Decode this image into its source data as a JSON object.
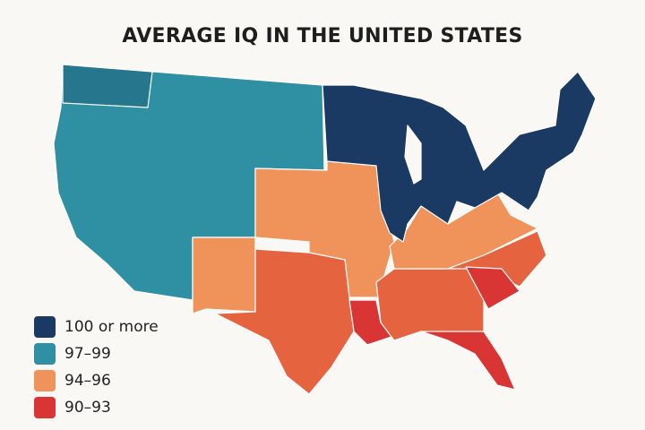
{
  "title": "AVERAGE IQ IN THE UNITED STATES",
  "colors": {
    "navy": "#1b3a63",
    "teal": "#2f8fa3",
    "teal_dark": "#26778d",
    "orange": "#f0935a",
    "red_orange": "#e6633f",
    "red": "#d93535",
    "background": "#faf8f4"
  },
  "legend": [
    {
      "label": "100 or more",
      "color": "#1b3a63"
    },
    {
      "label": "97–99",
      "color": "#2f8fa3"
    },
    {
      "label": "94–96",
      "color": "#f0935a"
    },
    {
      "label": "90–93",
      "color": "#d93535"
    }
  ]
}
